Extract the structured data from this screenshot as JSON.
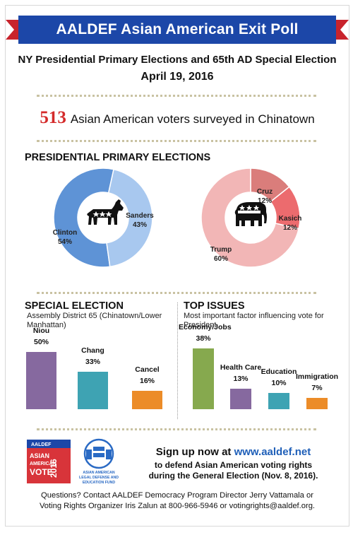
{
  "header": {
    "banner_title": "AALDEF Asian American Exit Poll",
    "subtitle_line1": "NY Presidential Primary Elections and 65th AD Special Election",
    "subtitle_line2": "April 19, 2016",
    "voters_number": "513",
    "voters_text": "Asian American voters surveyed in Chinatown",
    "colors": {
      "banner": "#1c47a8",
      "banner_tail": "#c8232c",
      "number": "#d42a2a"
    }
  },
  "presidential": {
    "heading": "PRESIDENTIAL PRIMARY ELECTIONS",
    "icons": {
      "democrat": "donkey-icon",
      "republican": "elephant-icon"
    }
  },
  "special": {
    "heading": "SPECIAL ELECTION",
    "subheading": "Assembly District 65 (Chinatown/Lower Manhattan)"
  },
  "issues": {
    "heading": "TOP ISSUES",
    "subheading": "Most important factor influencing vote for President"
  },
  "chart_data": [
    {
      "type": "pie",
      "title": "",
      "labels": [
        "Clinton",
        "Sanders"
      ],
      "values": [
        54,
        43
      ],
      "value_labels": [
        "54%",
        "43%"
      ],
      "colors": [
        "#5e93d6",
        "#a8c8ef"
      ]
    },
    {
      "type": "pie",
      "title": "",
      "labels": [
        "Cruz",
        "Kasich",
        "Trump"
      ],
      "values": [
        12,
        12,
        60
      ],
      "value_labels": [
        "12%",
        "12%",
        "60%"
      ],
      "colors": [
        "#da7d7b",
        "#ec6b6e",
        "#f2b6b6"
      ]
    },
    {
      "type": "bar",
      "title": "SPECIAL ELECTION",
      "categories": [
        "Niou",
        "Chang",
        "Cancel"
      ],
      "values": [
        50,
        33,
        16
      ],
      "value_labels": [
        "50%",
        "33%",
        "16%"
      ],
      "colors": [
        "#86699f",
        "#3ea3b3",
        "#ec8c28"
      ],
      "ylim": [
        0,
        50
      ]
    },
    {
      "type": "bar",
      "title": "TOP ISSUES",
      "categories": [
        "Economy/Jobs",
        "Health Care",
        "Education",
        "Immigration"
      ],
      "values": [
        38,
        13,
        10,
        7
      ],
      "value_labels": [
        "38%",
        "13%",
        "10%",
        "7%"
      ],
      "colors": [
        "#86a94e",
        "#86699f",
        "#3ea3b3",
        "#ec8c28"
      ],
      "ylim": [
        0,
        38
      ]
    }
  ],
  "footer": {
    "logo_text": "ASIAN AMERICAN VOTE 2016",
    "aaldef_logo_text": "ASIAN AMERICAN LEGAL DEFENSE AND EDUCATION FUND",
    "signup_prefix": "Sign up now at ",
    "signup_url": "www.aaldef.net",
    "signup_line2": "to defend Asian American voting rights",
    "signup_line3": "during the General Election (Nov. 8, 2016).",
    "contact_line1": "Questions? Contact AALDEF Democracy Program Director Jerry Vattamala or",
    "contact_line2": "Voting Rights Organizer Iris Zalun at 800-966-5946 or votingrights@aaldef.org."
  }
}
